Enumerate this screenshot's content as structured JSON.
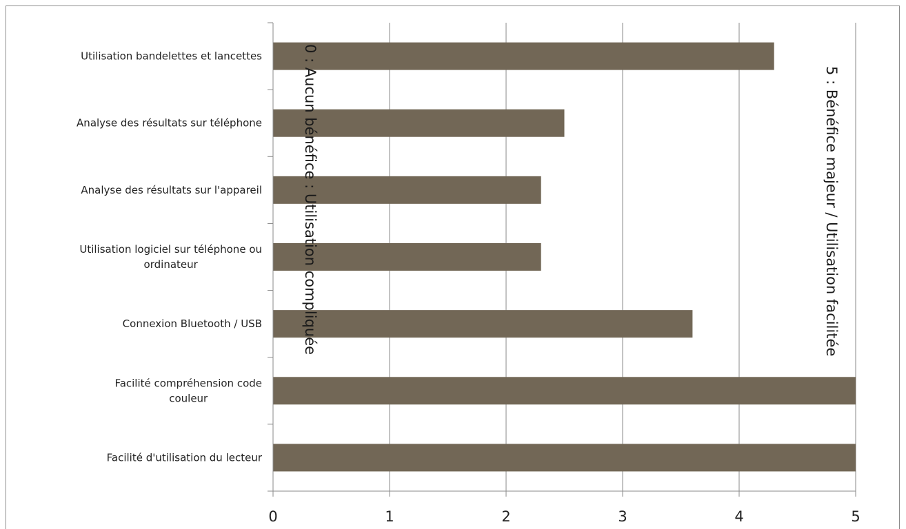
{
  "chart_data": {
    "type": "bar",
    "orientation": "horizontal",
    "categories": [
      "Utilisation bandelettes et lancettes",
      "Analyse des résultats sur téléphone",
      "Analyse des résultats sur l'appareil",
      "Utilisation logiciel sur téléphone ou ordinateur",
      "Connexion Bluetooth / USB",
      "Facilité compréhension code couleur",
      "Facilité d'utilisation du lecteur"
    ],
    "category_lines": [
      [
        "Utilisation bandelettes et lancettes"
      ],
      [
        "Analyse des résultats sur téléphone"
      ],
      [
        "Analyse des résultats sur l'appareil"
      ],
      [
        "Utilisation logiciel sur téléphone ou",
        "ordinateur"
      ],
      [
        "Connexion Bluetooth / USB"
      ],
      [
        "Facilité compréhension code",
        "couleur"
      ],
      [
        "Facilité d'utilisation du lecteur"
      ]
    ],
    "values": [
      4.3,
      2.5,
      2.3,
      2.3,
      3.6,
      5,
      5
    ],
    "xlim": [
      0,
      5
    ],
    "xticks": [
      "0",
      "1",
      "2",
      "3",
      "4",
      "5"
    ],
    "grid": "vertical",
    "bar_color": "#726756",
    "annotations": {
      "left": "0 : Aucun bénéfice : Utilisation compliquée",
      "right": "5 : Bénéfice majeur / Utilisation facilitée"
    },
    "title": "",
    "xlabel": "",
    "ylabel": ""
  }
}
